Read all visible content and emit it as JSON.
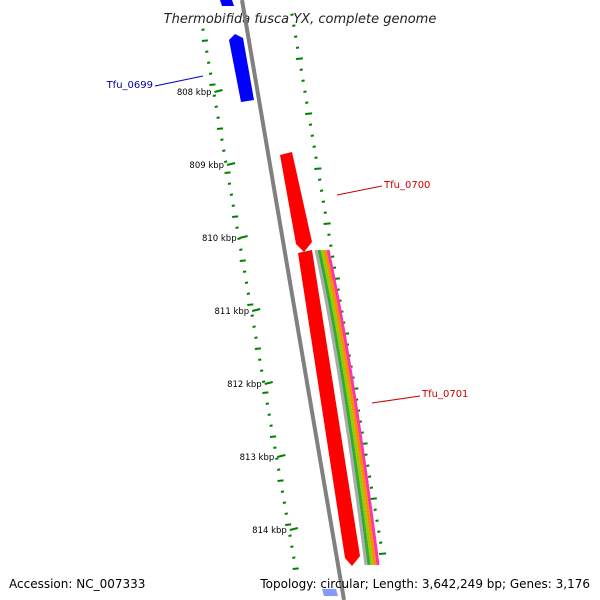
{
  "title": "Thermobifida fusca YX, complete genome",
  "ticks": [
    "808 kbp",
    "809 kbp",
    "810 kbp",
    "811 kbp",
    "812 kbp",
    "813 kbp",
    "814 kbp"
  ],
  "genes": [
    {
      "name": "Tfu_0699",
      "strand": "reverse",
      "color": "#0000ff"
    },
    {
      "name": "Tfu_0700",
      "strand": "reverse",
      "color": "#ff0000"
    },
    {
      "name": "Tfu_0701",
      "strand": "reverse",
      "color": "#ff0000"
    }
  ],
  "colors": {
    "backbone": "#808080",
    "gc_skew_dots": "#008000",
    "feature_track_stripes": [
      "#ff33aa",
      "#ff8c00",
      "#99cc00",
      "#33aa33",
      "#aaaaaa"
    ]
  },
  "footer": {
    "accession": "Accession: NC_007333",
    "summary": "Topology: circular; Length: 3,642,249 bp; Genes: 3,176"
  }
}
